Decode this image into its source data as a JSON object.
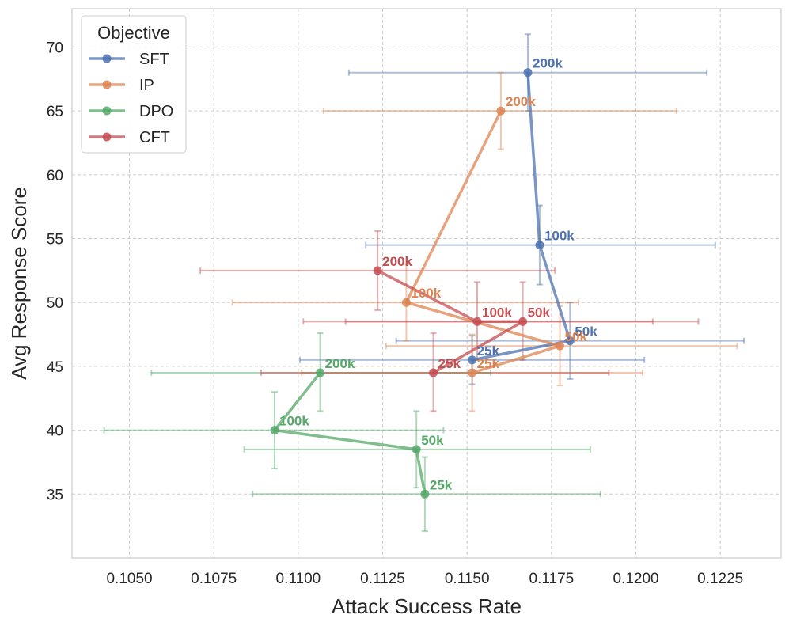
{
  "chart_data": {
    "type": "scatter",
    "xlabel": "Attack Success Rate",
    "ylabel": "Avg Response Score",
    "xlim": [
      0.1033,
      0.1243
    ],
    "ylim": [
      30.0,
      73.0
    ],
    "xticks": [
      0.105,
      0.1075,
      0.11,
      0.1125,
      0.115,
      0.1175,
      0.12,
      0.1225
    ],
    "xtick_labels": [
      "0.1050",
      "0.1075",
      "0.1100",
      "0.1125",
      "0.1150",
      "0.1175",
      "0.1200",
      "0.1225"
    ],
    "yticks": [
      35,
      40,
      45,
      50,
      55,
      60,
      65,
      70
    ],
    "ytick_labels": [
      "35",
      "40",
      "45",
      "50",
      "55",
      "60",
      "65",
      "70"
    ],
    "grid": true,
    "legend": {
      "title": "Objective",
      "placement": "top-left"
    },
    "series": [
      {
        "name": "SFT",
        "color": "#4c72b0",
        "points": [
          {
            "label": "25k",
            "x": 0.11515,
            "y": 45.5,
            "xerr": [
              0.11005,
              0.12025
            ],
            "yerr": [
              43.6,
              47.4
            ]
          },
          {
            "label": "50k",
            "x": 0.11805,
            "y": 47.0,
            "xerr": [
              0.1129,
              0.1232
            ],
            "yerr": [
              44.0,
              50.0
            ]
          },
          {
            "label": "100k",
            "x": 0.11715,
            "y": 54.5,
            "xerr": [
              0.112,
              0.12235
            ],
            "yerr": [
              51.4,
              57.6
            ]
          },
          {
            "label": "200k",
            "x": 0.1168,
            "y": 68.0,
            "xerr": [
              0.1115,
              0.1221
            ],
            "yerr": [
              65.0,
              71.0
            ]
          }
        ]
      },
      {
        "name": "IP",
        "color": "#dd8452",
        "points": [
          {
            "label": "25k",
            "x": 0.11515,
            "y": 44.5,
            "xerr": [
              0.1101,
              0.1202
            ],
            "yerr": [
              41.5,
              47.5
            ]
          },
          {
            "label": "50k",
            "x": 0.11775,
            "y": 46.6,
            "xerr": [
              0.1126,
              0.123
            ],
            "yerr": [
              43.5,
              49.7
            ]
          },
          {
            "label": "100k",
            "x": 0.1132,
            "y": 50.0,
            "xerr": [
              0.10805,
              0.1183
            ],
            "yerr": [
              47.0,
              53.0
            ]
          },
          {
            "label": "200k",
            "x": 0.116,
            "y": 65.0,
            "xerr": [
              0.11075,
              0.1212
            ],
            "yerr": [
              62.0,
              68.0
            ]
          }
        ]
      },
      {
        "name": "DPO",
        "color": "#55a868",
        "points": [
          {
            "label": "25k",
            "x": 0.11375,
            "y": 35.0,
            "xerr": [
              0.10865,
              0.11895
            ],
            "yerr": [
              32.1,
              37.9
            ]
          },
          {
            "label": "50k",
            "x": 0.1135,
            "y": 38.5,
            "xerr": [
              0.1084,
              0.11865
            ],
            "yerr": [
              35.5,
              41.5
            ]
          },
          {
            "label": "100k",
            "x": 0.1093,
            "y": 40.0,
            "xerr": [
              0.10425,
              0.1143
            ],
            "yerr": [
              37.0,
              43.0
            ]
          },
          {
            "label": "200k",
            "x": 0.11065,
            "y": 44.5,
            "xerr": [
              0.10565,
              0.1157
            ],
            "yerr": [
              41.5,
              47.6
            ]
          }
        ]
      },
      {
        "name": "CFT",
        "color": "#c44e52",
        "points": [
          {
            "label": "25k",
            "x": 0.114,
            "y": 44.5,
            "xerr": [
              0.1089,
              0.1192
            ],
            "yerr": [
              41.5,
              47.6
            ]
          },
          {
            "label": "50k",
            "x": 0.11665,
            "y": 48.5,
            "xerr": [
              0.1114,
              0.12185
            ],
            "yerr": [
              45.5,
              51.6
            ]
          },
          {
            "label": "100k",
            "x": 0.1153,
            "y": 48.5,
            "xerr": [
              0.11015,
              0.1205
            ],
            "yerr": [
              45.5,
              51.6
            ]
          },
          {
            "label": "200k",
            "x": 0.11235,
            "y": 52.5,
            "xerr": [
              0.1071,
              0.1176
            ],
            "yerr": [
              49.4,
              55.6
            ]
          }
        ]
      }
    ]
  }
}
